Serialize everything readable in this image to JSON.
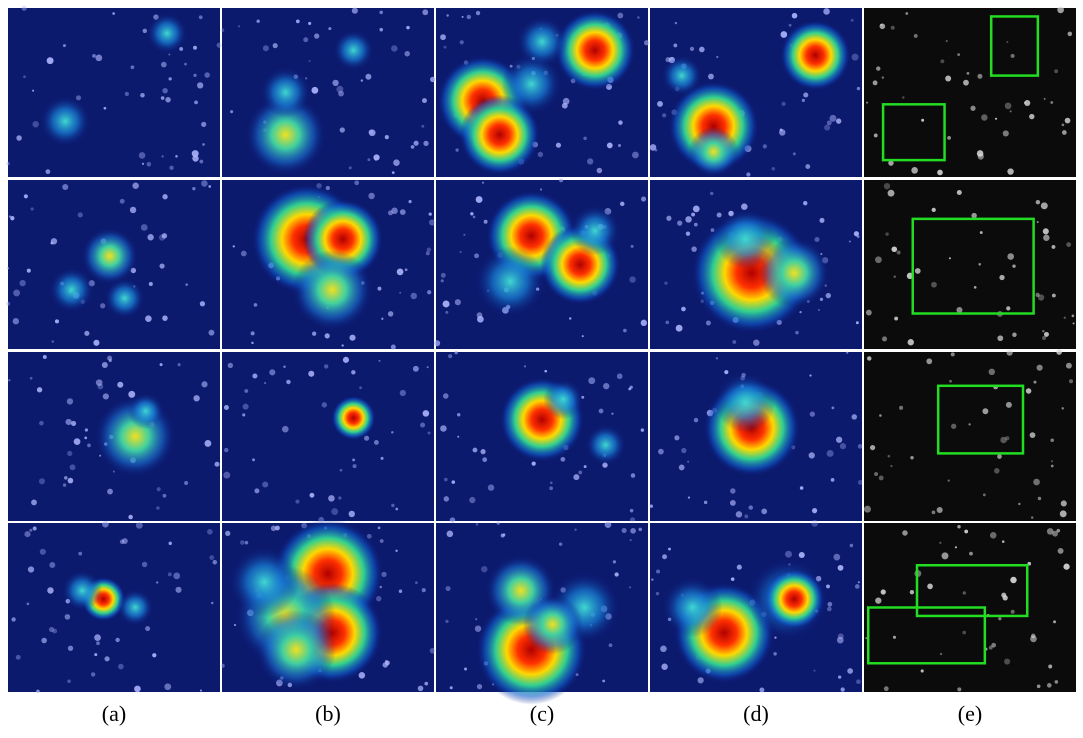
{
  "figure": {
    "column_labels": [
      "(a)",
      "(b)",
      "(c)",
      "(d)",
      "(e)"
    ]
  }
}
